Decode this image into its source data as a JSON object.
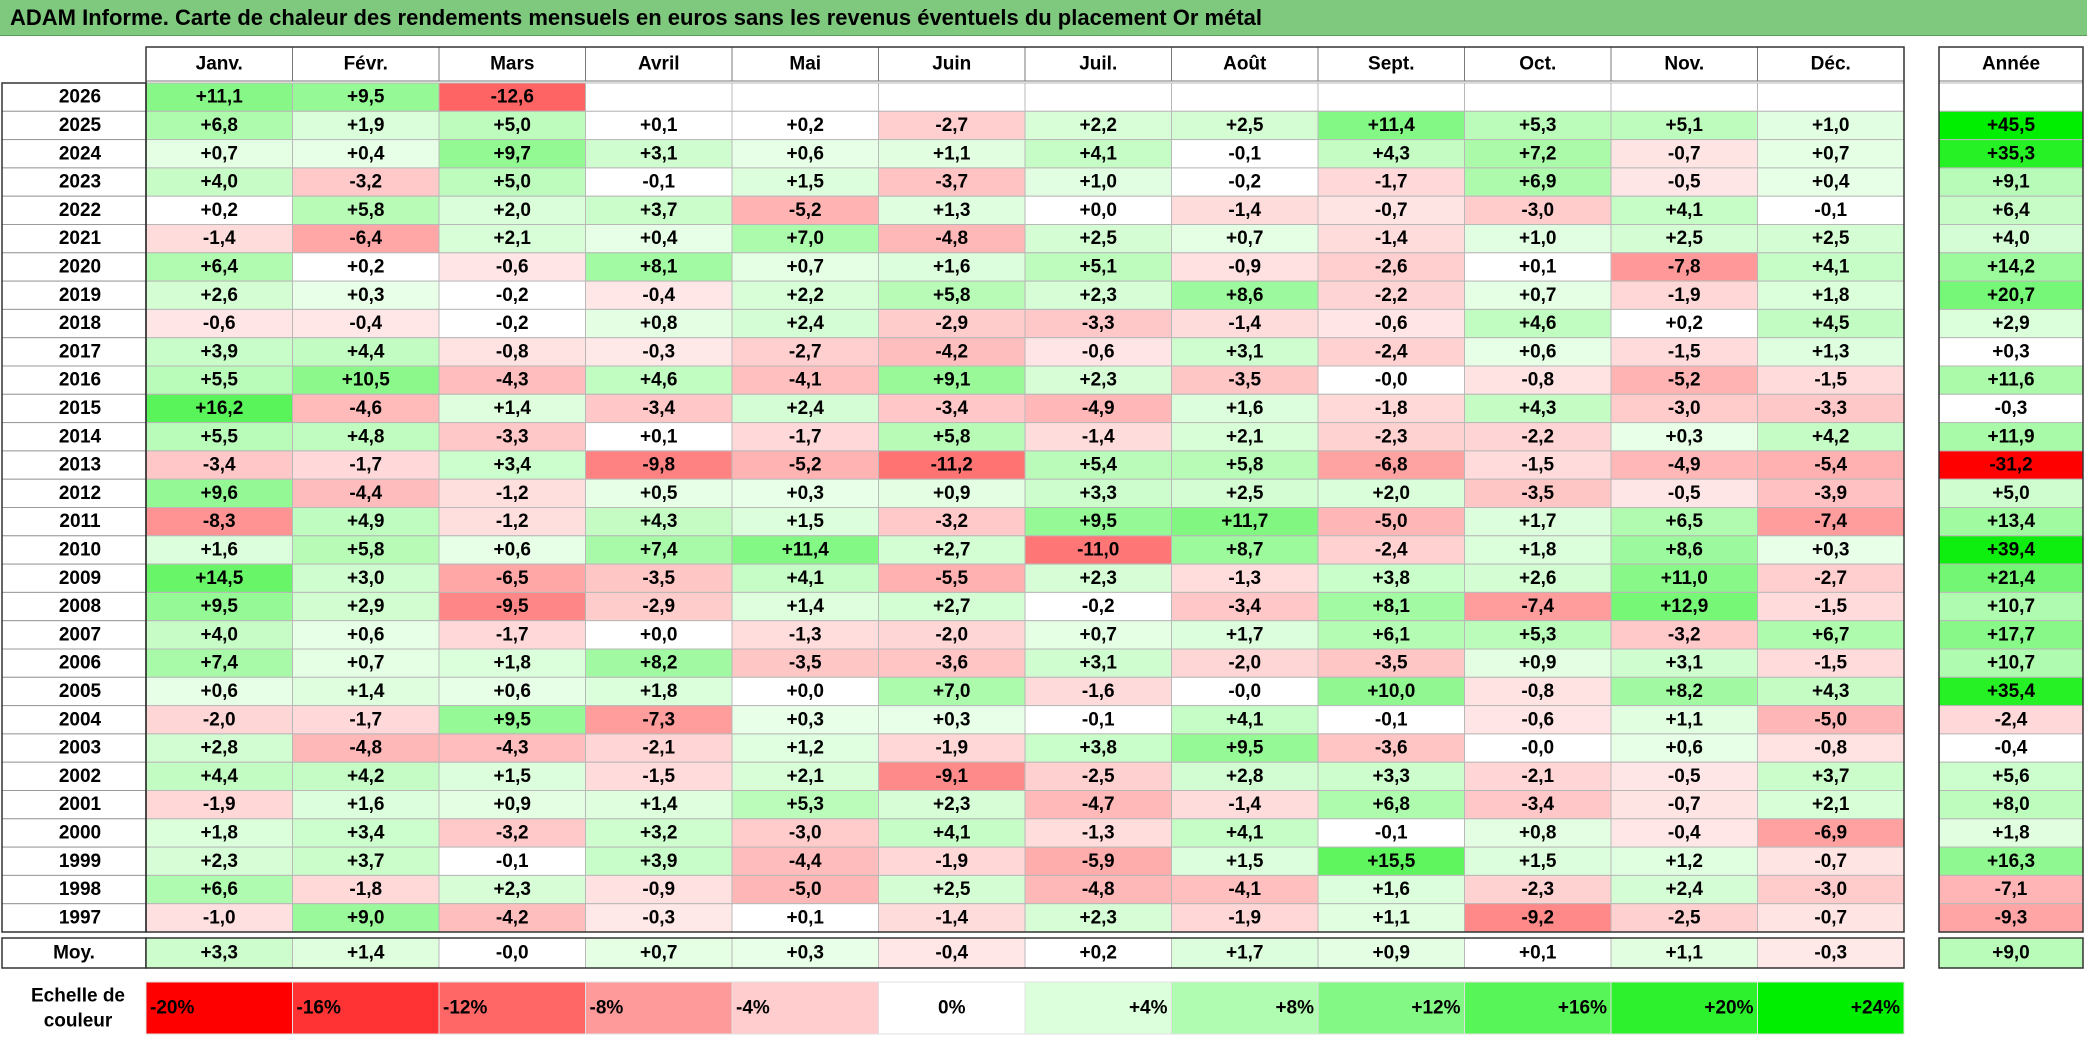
{
  "title": "ADAM Informe. Carte de chaleur des rendements mensuels en euros sans les revenus éventuels du placement Or métal",
  "chart_data": {
    "type": "heatmap",
    "title": "ADAM Informe. Carte de chaleur des rendements mensuels en euros sans les revenus éventuels du placement Or métal",
    "months": [
      "Janv.",
      "Févr.",
      "Mars",
      "Avril",
      "Mai",
      "Juin",
      "Juil.",
      "Août",
      "Sept.",
      "Oct.",
      "Nov.",
      "Déc."
    ],
    "year_header": "Année",
    "rows": [
      {
        "year": "2026",
        "months": [
          "+11,1",
          "+9,5",
          "-12,6",
          "",
          "",
          "",
          "",
          "",
          "",
          "",
          "",
          ""
        ],
        "annual": ""
      },
      {
        "year": "2025",
        "months": [
          "+6,8",
          "+1,9",
          "+5,0",
          "+0,1",
          "+0,2",
          "-2,7",
          "+2,2",
          "+2,5",
          "+11,4",
          "+5,3",
          "+5,1",
          "+1,0"
        ],
        "annual": "+45,5"
      },
      {
        "year": "2024",
        "months": [
          "+0,7",
          "+0,4",
          "+9,7",
          "+3,1",
          "+0,6",
          "+1,1",
          "+4,1",
          "-0,1",
          "+4,3",
          "+7,2",
          "-0,7",
          "+0,7"
        ],
        "annual": "+35,3"
      },
      {
        "year": "2023",
        "months": [
          "+4,0",
          "-3,2",
          "+5,0",
          "-0,1",
          "+1,5",
          "-3,7",
          "+1,0",
          "-0,2",
          "-1,7",
          "+6,9",
          "-0,5",
          "+0,4"
        ],
        "annual": "+9,1"
      },
      {
        "year": "2022",
        "months": [
          "+0,2",
          "+5,8",
          "+2,0",
          "+3,7",
          "-5,2",
          "+1,3",
          "+0,0",
          "-1,4",
          "-0,7",
          "-3,0",
          "+4,1",
          "-0,1"
        ],
        "annual": "+6,4"
      },
      {
        "year": "2021",
        "months": [
          "-1,4",
          "-6,4",
          "+2,1",
          "+0,4",
          "+7,0",
          "-4,8",
          "+2,5",
          "+0,7",
          "-1,4",
          "+1,0",
          "+2,5",
          "+2,5"
        ],
        "annual": "+4,0"
      },
      {
        "year": "2020",
        "months": [
          "+6,4",
          "+0,2",
          "-0,6",
          "+8,1",
          "+0,7",
          "+1,6",
          "+5,1",
          "-0,9",
          "-2,6",
          "+0,1",
          "-7,8",
          "+4,1"
        ],
        "annual": "+14,2"
      },
      {
        "year": "2019",
        "months": [
          "+2,6",
          "+0,3",
          "-0,2",
          "-0,4",
          "+2,2",
          "+5,8",
          "+2,3",
          "+8,6",
          "-2,2",
          "+0,7",
          "-1,9",
          "+1,8"
        ],
        "annual": "+20,7"
      },
      {
        "year": "2018",
        "months": [
          "-0,6",
          "-0,4",
          "-0,2",
          "+0,8",
          "+2,4",
          "-2,9",
          "-3,3",
          "-1,4",
          "-0,6",
          "+4,6",
          "+0,2",
          "+4,5"
        ],
        "annual": "+2,9"
      },
      {
        "year": "2017",
        "months": [
          "+3,9",
          "+4,4",
          "-0,8",
          "-0,3",
          "-2,7",
          "-4,2",
          "-0,6",
          "+3,1",
          "-2,4",
          "+0,6",
          "-1,5",
          "+1,3"
        ],
        "annual": "+0,3"
      },
      {
        "year": "2016",
        "months": [
          "+5,5",
          "+10,5",
          "-4,3",
          "+4,6",
          "-4,1",
          "+9,1",
          "+2,3",
          "-3,5",
          "-0,0",
          "-0,8",
          "-5,2",
          "-1,5"
        ],
        "annual": "+11,6"
      },
      {
        "year": "2015",
        "months": [
          "+16,2",
          "-4,6",
          "+1,4",
          "-3,4",
          "+2,4",
          "-3,4",
          "-4,9",
          "+1,6",
          "-1,8",
          "+4,3",
          "-3,0",
          "-3,3"
        ],
        "annual": "-0,3"
      },
      {
        "year": "2014",
        "months": [
          "+5,5",
          "+4,8",
          "-3,3",
          "+0,1",
          "-1,7",
          "+5,8",
          "-1,4",
          "+2,1",
          "-2,3",
          "-2,2",
          "+0,3",
          "+4,2"
        ],
        "annual": "+11,9"
      },
      {
        "year": "2013",
        "months": [
          "-3,4",
          "-1,7",
          "+3,4",
          "-9,8",
          "-5,2",
          "-11,2",
          "+5,4",
          "+5,8",
          "-6,8",
          "-1,5",
          "-4,9",
          "-5,4"
        ],
        "annual": "-31,2"
      },
      {
        "year": "2012",
        "months": [
          "+9,6",
          "-4,4",
          "-1,2",
          "+0,5",
          "+0,3",
          "+0,9",
          "+3,3",
          "+2,5",
          "+2,0",
          "-3,5",
          "-0,5",
          "-3,9"
        ],
        "annual": "+5,0"
      },
      {
        "year": "2011",
        "months": [
          "-8,3",
          "+4,9",
          "-1,2",
          "+4,3",
          "+1,5",
          "-3,2",
          "+9,5",
          "+11,7",
          "-5,0",
          "+1,7",
          "+6,5",
          "-7,4"
        ],
        "annual": "+13,4"
      },
      {
        "year": "2010",
        "months": [
          "+1,6",
          "+5,8",
          "+0,6",
          "+7,4",
          "+11,4",
          "+2,7",
          "-11,0",
          "+8,7",
          "-2,4",
          "+1,8",
          "+8,6",
          "+0,3"
        ],
        "annual": "+39,4"
      },
      {
        "year": "2009",
        "months": [
          "+14,5",
          "+3,0",
          "-6,5",
          "-3,5",
          "+4,1",
          "-5,5",
          "+2,3",
          "-1,3",
          "+3,8",
          "+2,6",
          "+11,0",
          "-2,7"
        ],
        "annual": "+21,4"
      },
      {
        "year": "2008",
        "months": [
          "+9,5",
          "+2,9",
          "-9,5",
          "-2,9",
          "+1,4",
          "+2,7",
          "-0,2",
          "-3,4",
          "+8,1",
          "-7,4",
          "+12,9",
          "-1,5"
        ],
        "annual": "+10,7"
      },
      {
        "year": "2007",
        "months": [
          "+4,0",
          "+0,6",
          "-1,7",
          "+0,0",
          "-1,3",
          "-2,0",
          "+0,7",
          "+1,7",
          "+6,1",
          "+5,3",
          "-3,2",
          "+6,7"
        ],
        "annual": "+17,7"
      },
      {
        "year": "2006",
        "months": [
          "+7,4",
          "+0,7",
          "+1,8",
          "+8,2",
          "-3,5",
          "-3,6",
          "+3,1",
          "-2,0",
          "-3,5",
          "+0,9",
          "+3,1",
          "-1,5"
        ],
        "annual": "+10,7"
      },
      {
        "year": "2005",
        "months": [
          "+0,6",
          "+1,4",
          "+0,6",
          "+1,8",
          "+0,0",
          "+7,0",
          "-1,6",
          "-0,0",
          "+10,0",
          "-0,8",
          "+8,2",
          "+4,3"
        ],
        "annual": "+35,4"
      },
      {
        "year": "2004",
        "months": [
          "-2,0",
          "-1,7",
          "+9,5",
          "-7,3",
          "+0,3",
          "+0,3",
          "-0,1",
          "+4,1",
          "-0,1",
          "-0,6",
          "+1,1",
          "-5,0"
        ],
        "annual": "-2,4"
      },
      {
        "year": "2003",
        "months": [
          "+2,8",
          "-4,8",
          "-4,3",
          "-2,1",
          "+1,2",
          "-1,9",
          "+3,8",
          "+9,5",
          "-3,6",
          "-0,0",
          "+0,6",
          "-0,8"
        ],
        "annual": "-0,4"
      },
      {
        "year": "2002",
        "months": [
          "+4,4",
          "+4,2",
          "+1,5",
          "-1,5",
          "+2,1",
          "-9,1",
          "-2,5",
          "+2,8",
          "+3,3",
          "-2,1",
          "-0,5",
          "+3,7"
        ],
        "annual": "+5,6"
      },
      {
        "year": "2001",
        "months": [
          "-1,9",
          "+1,6",
          "+0,9",
          "+1,4",
          "+5,3",
          "+2,3",
          "-4,7",
          "-1,4",
          "+6,8",
          "-3,4",
          "-0,7",
          "+2,1"
        ],
        "annual": "+8,0"
      },
      {
        "year": "2000",
        "months": [
          "+1,8",
          "+3,4",
          "-3,2",
          "+3,2",
          "-3,0",
          "+4,1",
          "-1,3",
          "+4,1",
          "-0,1",
          "+0,8",
          "-0,4",
          "-6,9"
        ],
        "annual": "+1,8"
      },
      {
        "year": "1999",
        "months": [
          "+2,3",
          "+3,7",
          "-0,1",
          "+3,9",
          "-4,4",
          "-1,9",
          "-5,9",
          "+1,5",
          "+15,5",
          "+1,5",
          "+1,2",
          "-0,7"
        ],
        "annual": "+16,3"
      },
      {
        "year": "1998",
        "months": [
          "+6,6",
          "-1,8",
          "+2,3",
          "-0,9",
          "-5,0",
          "+2,5",
          "-4,8",
          "-4,1",
          "+1,6",
          "-2,3",
          "+2,4",
          "-3,0"
        ],
        "annual": "-7,1"
      },
      {
        "year": "1997",
        "months": [
          "-1,0",
          "+9,0",
          "-4,2",
          "-0,3",
          "+0,1",
          "-1,4",
          "+2,3",
          "-1,9",
          "+1,1",
          "-9,2",
          "-2,5",
          "-0,7"
        ],
        "annual": "-9,3"
      }
    ],
    "average": {
      "label": "Moy.",
      "months": [
        "+3,3",
        "+1,4",
        "-0,0",
        "+0,7",
        "+0,3",
        "-0,4",
        "+0,2",
        "+1,7",
        "+0,9",
        "+0,1",
        "+1,1",
        "-0,3"
      ],
      "annual": "+9,0"
    },
    "scale": {
      "label_line1": "Echelle de",
      "label_line2": "couleur",
      "items": [
        {
          "text": "-20%",
          "value": -20
        },
        {
          "text": "-16%",
          "value": -16
        },
        {
          "text": "-12%",
          "value": -12
        },
        {
          "text": "-8%",
          "value": -8
        },
        {
          "text": "-4%",
          "value": -4
        },
        {
          "text": "0%",
          "value": 0
        },
        {
          "text": "+4%",
          "value": 4
        },
        {
          "text": "+8%",
          "value": 8
        },
        {
          "text": "+12%",
          "value": 12
        },
        {
          "text": "+16%",
          "value": 16
        },
        {
          "text": "+20%",
          "value": 20
        },
        {
          "text": "+24%",
          "value": 24
        }
      ]
    },
    "colors": {
      "negative_max": "#ff0000",
      "neutral": "#ffffff",
      "positive_max": "#00ee00",
      "title_bg": "#7fc97f"
    }
  }
}
